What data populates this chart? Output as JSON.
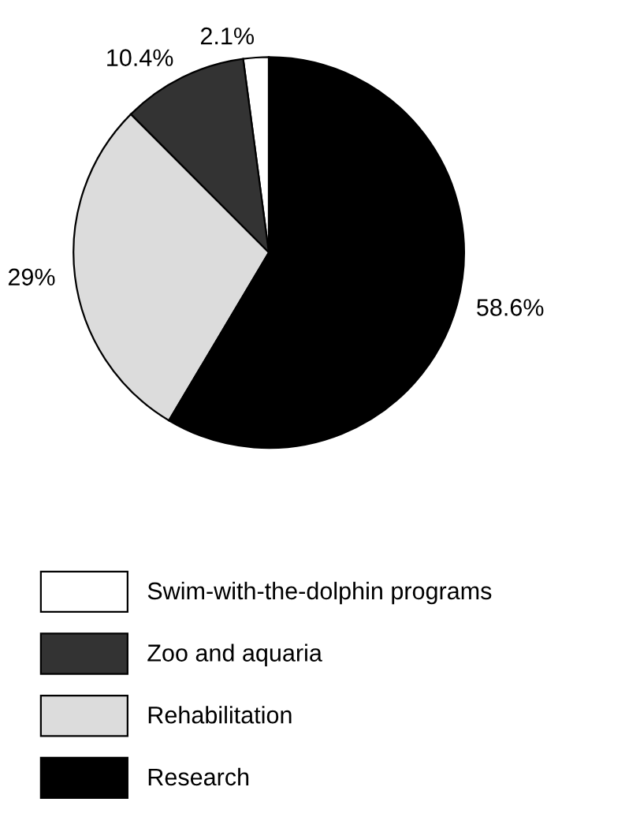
{
  "chart_data": {
    "type": "pie",
    "categories": [
      "Swim-with-the-dolphin programs",
      "Zoo and aquaria",
      "Rehabilitation",
      "Research"
    ],
    "values": [
      2.1,
      10.4,
      29,
      58.6
    ],
    "value_labels": [
      "2.1%",
      "10.4%",
      "29%",
      "58.6%"
    ],
    "colors": [
      "#ffffff",
      "#333333",
      "#dcdcdc",
      "#000000"
    ],
    "legend": "bottom"
  }
}
